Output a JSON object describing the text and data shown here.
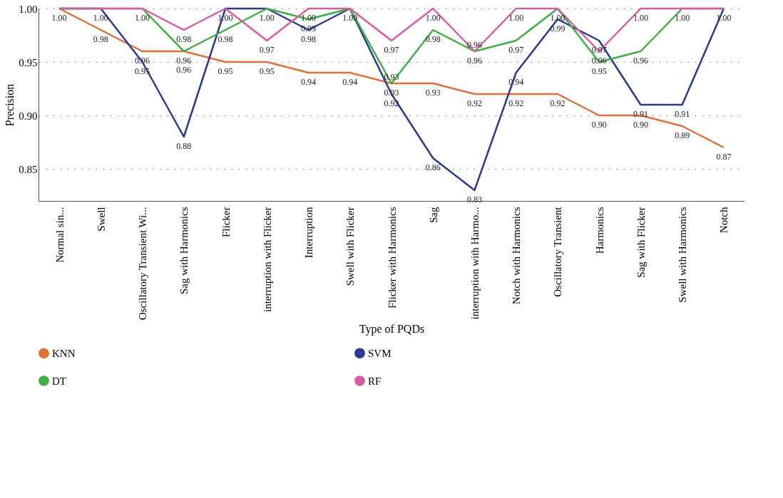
{
  "chart_data": {
    "type": "line",
    "xlabel": "Type of PQDs",
    "ylabel": "Precision",
    "categories": [
      "Normal sin...",
      "Swell",
      "Oscillatory Transient Wi...",
      "Sag with Harmonics",
      "Flicker",
      "interruption with Flicker",
      "Interruption",
      "Swell with Flicker",
      "Flicker with Harmonics",
      "Sag",
      "interruption with Harmo...",
      "Notch with Harmonics",
      "Oscillatory Transient",
      "Harmonics",
      "Sag with Flicker",
      "Swell with Harmonics",
      "Notch"
    ],
    "series": [
      {
        "name": "KNN",
        "color": "#e07038",
        "values": [
          1.0,
          0.98,
          0.96,
          0.96,
          0.95,
          0.95,
          0.94,
          0.94,
          0.93,
          0.93,
          0.92,
          0.92,
          0.92,
          0.9,
          0.9,
          0.89,
          0.87
        ],
        "value_labels": [
          "1.00",
          "0.98",
          "0.96",
          "0.96",
          "0.95",
          "0.95",
          "0.94",
          "0.94",
          "0.93",
          "0.93",
          "0.92",
          "0.92",
          "0.92",
          "0.90",
          "0.90",
          "0.89",
          "0.87"
        ]
      },
      {
        "name": "SVM",
        "color": "#2b3990",
        "values": [
          1.0,
          1.0,
          0.95,
          0.88,
          1.0,
          1.0,
          0.98,
          1.0,
          0.92,
          0.86,
          0.83,
          0.94,
          0.99,
          0.97,
          0.91,
          0.91,
          1.0
        ],
        "value_labels": [
          null,
          "1.00",
          "0.95",
          "0.88",
          "1.00",
          null,
          "0.98",
          null,
          "0.92",
          "0.86",
          "0.83",
          "0.94",
          "0.99",
          "0.97",
          "0.91",
          "0.91",
          "1.00"
        ]
      },
      {
        "name": "DT",
        "color": "#3cb043",
        "values": [
          1.0,
          1.0,
          1.0,
          0.96,
          0.98,
          1.0,
          0.99,
          1.0,
          0.93,
          0.98,
          0.96,
          0.97,
          1.0,
          0.95,
          0.96,
          1.0,
          1.0
        ],
        "value_labels": [
          null,
          null,
          "1.00",
          "0.96",
          "0.98",
          "1.00",
          "0.99",
          "1.00",
          "0.93",
          "0.98",
          "0.96",
          "0.97",
          "1.00",
          "0.95",
          "0.96",
          "1.00",
          null
        ]
      },
      {
        "name": "RF",
        "color": "#d85aa8",
        "values": [
          1.0,
          1.0,
          1.0,
          0.98,
          1.0,
          0.97,
          1.0,
          1.0,
          0.97,
          1.0,
          0.96,
          1.0,
          1.0,
          0.96,
          1.0,
          1.0,
          1.0
        ],
        "value_labels": [
          null,
          null,
          null,
          "0.98",
          null,
          "0.97",
          "1.00",
          null,
          "0.97",
          "1.00",
          "0.96",
          "1.00",
          null,
          "0.96",
          "1.00",
          null,
          null
        ]
      }
    ],
    "ylim": [
      0.82,
      1.0
    ],
    "yticks": [
      {
        "value": 0.85,
        "label": "0.85"
      },
      {
        "value": 0.9,
        "label": "0.90"
      },
      {
        "value": 0.95,
        "label": "0.95"
      },
      {
        "value": 1.0,
        "label": "1.00"
      }
    ],
    "grid": "y",
    "legend": "bottom",
    "marker": "none",
    "line_style": "solid"
  }
}
